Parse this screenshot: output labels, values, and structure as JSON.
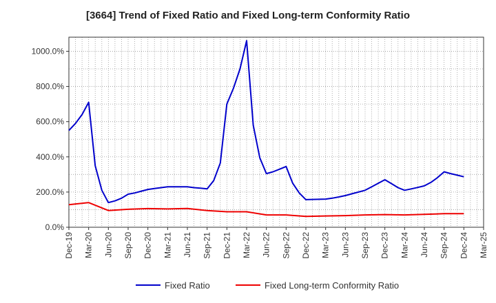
{
  "chart_data": {
    "type": "line",
    "title": "[3664]  Trend of Fixed Ratio and Fixed Long-term Conformity Ratio",
    "xlabel": "",
    "ylabel": "",
    "ylim": [
      0,
      1080
    ],
    "yticks": [
      {
        "value": 0,
        "label": "0.0%"
      },
      {
        "value": 200,
        "label": "200.0%"
      },
      {
        "value": 400,
        "label": "400.0%"
      },
      {
        "value": 600,
        "label": "600.0%"
      },
      {
        "value": 800,
        "label": "800.0%"
      },
      {
        "value": 1000,
        "label": "1000.0%"
      }
    ],
    "xlim": [
      0,
      63
    ],
    "xticks": [
      {
        "value": 0,
        "label": "Dec-19"
      },
      {
        "value": 3,
        "label": "Mar-20"
      },
      {
        "value": 6,
        "label": "Jun-20"
      },
      {
        "value": 9,
        "label": "Sep-20"
      },
      {
        "value": 12,
        "label": "Dec-20"
      },
      {
        "value": 15,
        "label": "Mar-21"
      },
      {
        "value": 18,
        "label": "Jun-21"
      },
      {
        "value": 21,
        "label": "Sep-21"
      },
      {
        "value": 24,
        "label": "Dec-21"
      },
      {
        "value": 27,
        "label": "Mar-22"
      },
      {
        "value": 30,
        "label": "Jun-22"
      },
      {
        "value": 33,
        "label": "Sep-22"
      },
      {
        "value": 36,
        "label": "Dec-22"
      },
      {
        "value": 39,
        "label": "Mar-23"
      },
      {
        "value": 42,
        "label": "Jun-23"
      },
      {
        "value": 45,
        "label": "Sep-23"
      },
      {
        "value": 48,
        "label": "Dec-23"
      },
      {
        "value": 51,
        "label": "Mar-24"
      },
      {
        "value": 54,
        "label": "Jun-24"
      },
      {
        "value": 57,
        "label": "Sep-24"
      },
      {
        "value": 60,
        "label": "Dec-24"
      },
      {
        "value": 63,
        "label": "Mar-25"
      }
    ],
    "grid": true,
    "legend_position": "bottom",
    "series": [
      {
        "name": "Fixed Ratio",
        "color": "#0000cc",
        "points": [
          [
            0,
            550
          ],
          [
            1,
            590
          ],
          [
            2,
            640
          ],
          [
            3,
            710
          ],
          [
            4,
            350
          ],
          [
            5,
            210
          ],
          [
            6,
            140
          ],
          [
            7,
            150
          ],
          [
            8,
            165
          ],
          [
            9,
            188
          ],
          [
            10,
            195
          ],
          [
            11,
            205
          ],
          [
            12,
            215
          ],
          [
            13,
            220
          ],
          [
            14,
            225
          ],
          [
            15,
            230
          ],
          [
            16,
            230
          ],
          [
            17,
            230
          ],
          [
            18,
            230
          ],
          [
            19,
            225
          ],
          [
            20,
            222
          ],
          [
            21,
            218
          ],
          [
            22,
            265
          ],
          [
            23,
            365
          ],
          [
            24,
            700
          ],
          [
            25,
            790
          ],
          [
            26,
            900
          ],
          [
            27,
            1060
          ],
          [
            28,
            580
          ],
          [
            29,
            395
          ],
          [
            30,
            305
          ],
          [
            31,
            315
          ],
          [
            32,
            330
          ],
          [
            33,
            345
          ],
          [
            34,
            250
          ],
          [
            35,
            195
          ],
          [
            36,
            157
          ],
          [
            37,
            158
          ],
          [
            38,
            159
          ],
          [
            39,
            160
          ],
          [
            40,
            165
          ],
          [
            41,
            172
          ],
          [
            42,
            180
          ],
          [
            43,
            190
          ],
          [
            44,
            200
          ],
          [
            45,
            210
          ],
          [
            46,
            230
          ],
          [
            47,
            250
          ],
          [
            48,
            270
          ],
          [
            49,
            248
          ],
          [
            50,
            225
          ],
          [
            51,
            210
          ],
          [
            52,
            218
          ],
          [
            53,
            226
          ],
          [
            54,
            235
          ],
          [
            55,
            255
          ],
          [
            56,
            282
          ],
          [
            57,
            315
          ],
          [
            58,
            305
          ],
          [
            59,
            296
          ],
          [
            60,
            287
          ]
        ]
      },
      {
        "name": "Fixed Long-term Conformity Ratio",
        "color": "#ee0000",
        "points": [
          [
            0,
            128
          ],
          [
            3,
            140
          ],
          [
            6,
            95
          ],
          [
            9,
            102
          ],
          [
            12,
            106
          ],
          [
            15,
            104
          ],
          [
            18,
            107
          ],
          [
            21,
            95
          ],
          [
            24,
            88
          ],
          [
            27,
            88
          ],
          [
            30,
            70
          ],
          [
            33,
            70
          ],
          [
            36,
            62
          ],
          [
            39,
            64
          ],
          [
            42,
            66
          ],
          [
            45,
            70
          ],
          [
            48,
            72
          ],
          [
            51,
            70
          ],
          [
            54,
            73
          ],
          [
            57,
            77
          ],
          [
            60,
            77
          ]
        ]
      }
    ]
  }
}
